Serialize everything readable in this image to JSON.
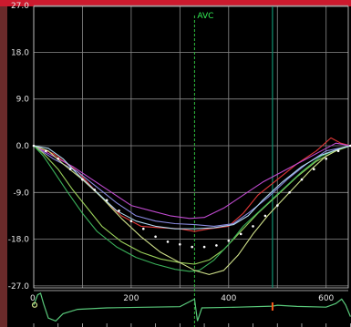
{
  "colors": {
    "background": "#000000",
    "grid": "#8a8a8a",
    "axis_text": "#e6e6e6",
    "top_bar": "#cc1a2e",
    "left_band": "#6a2a2a",
    "avc_line": "#2fbf3f",
    "marker_line": "#0f8f6f",
    "ecg": "#59c87a",
    "ecg_marker": "#ff5a1a"
  },
  "chart_data": {
    "type": "line",
    "y_axis_ticks": [
      "27.0",
      "18.0",
      "9.0",
      "0.0",
      "-9.0",
      "-18.0",
      "-27.0"
    ],
    "ylim": [
      -27,
      27
    ],
    "x_axis_ticks": [
      "0",
      "200",
      "400",
      "600"
    ],
    "xlim": [
      0,
      650
    ],
    "grid": true,
    "annotations": [
      {
        "label": "AVC",
        "x": 330,
        "color": "#2fbf3f"
      }
    ],
    "vertical_markers": [
      {
        "x": 490,
        "color": "#0f8f6f"
      }
    ],
    "series": [
      {
        "color": "#e23838",
        "points": [
          [
            0,
            0
          ],
          [
            40,
            -1.5
          ],
          [
            90,
            -5
          ],
          [
            140,
            -10
          ],
          [
            180,
            -13.5
          ],
          [
            220,
            -15.5
          ],
          [
            260,
            -15.8
          ],
          [
            300,
            -16
          ],
          [
            330,
            -16.5
          ],
          [
            360,
            -16
          ],
          [
            400,
            -15.5
          ],
          [
            430,
            -13
          ],
          [
            460,
            -9.5
          ],
          [
            500,
            -6.5
          ],
          [
            540,
            -3.5
          ],
          [
            580,
            -1
          ],
          [
            610,
            1.5
          ],
          [
            630,
            0.5
          ],
          [
            650,
            0
          ]
        ]
      },
      {
        "color": "#c04ad0",
        "points": [
          [
            0,
            0
          ],
          [
            40,
            -2
          ],
          [
            80,
            -4
          ],
          [
            120,
            -6.5
          ],
          [
            160,
            -9
          ],
          [
            200,
            -11.5
          ],
          [
            240,
            -12.5
          ],
          [
            280,
            -13.5
          ],
          [
            320,
            -14
          ],
          [
            350,
            -13.8
          ],
          [
            390,
            -12
          ],
          [
            430,
            -9.5
          ],
          [
            470,
            -7
          ],
          [
            510,
            -5
          ],
          [
            550,
            -3
          ],
          [
            590,
            -1
          ],
          [
            620,
            0.5
          ],
          [
            650,
            0
          ]
        ]
      },
      {
        "color": "#8a8ae0",
        "points": [
          [
            0,
            0
          ],
          [
            40,
            -2.5
          ],
          [
            90,
            -5
          ],
          [
            130,
            -8
          ],
          [
            170,
            -11
          ],
          [
            210,
            -13.5
          ],
          [
            250,
            -14.5
          ],
          [
            290,
            -15
          ],
          [
            330,
            -15.2
          ],
          [
            370,
            -15.5
          ],
          [
            410,
            -15
          ],
          [
            440,
            -13
          ],
          [
            480,
            -10
          ],
          [
            520,
            -6.5
          ],
          [
            560,
            -3.5
          ],
          [
            600,
            -1
          ],
          [
            650,
            0
          ]
        ]
      },
      {
        "color": "#9ad05a",
        "points": [
          [
            0,
            0
          ],
          [
            20,
            -1.5
          ],
          [
            50,
            -4.5
          ],
          [
            80,
            -8.5
          ],
          [
            110,
            -12
          ],
          [
            140,
            -15.5
          ],
          [
            180,
            -18.5
          ],
          [
            220,
            -20.5
          ],
          [
            260,
            -21.8
          ],
          [
            300,
            -22.5
          ],
          [
            330,
            -22.8
          ],
          [
            360,
            -22
          ],
          [
            390,
            -20
          ],
          [
            420,
            -17
          ],
          [
            460,
            -13
          ],
          [
            500,
            -9.5
          ],
          [
            540,
            -6
          ],
          [
            580,
            -3
          ],
          [
            620,
            -1
          ],
          [
            650,
            0
          ]
        ]
      },
      {
        "color": "#3ab25a",
        "points": [
          [
            0,
            0
          ],
          [
            20,
            -2
          ],
          [
            45,
            -5.5
          ],
          [
            70,
            -9
          ],
          [
            100,
            -13
          ],
          [
            130,
            -16.5
          ],
          [
            170,
            -19.5
          ],
          [
            210,
            -21.5
          ],
          [
            250,
            -22.8
          ],
          [
            290,
            -23.8
          ],
          [
            320,
            -24.2
          ],
          [
            340,
            -24
          ],
          [
            370,
            -22
          ],
          [
            400,
            -19
          ],
          [
            430,
            -15.5
          ],
          [
            470,
            -12
          ],
          [
            510,
            -8.5
          ],
          [
            550,
            -5
          ],
          [
            590,
            -2
          ],
          [
            630,
            -0.5
          ],
          [
            650,
            0
          ]
        ]
      },
      {
        "color": "#cfe08a",
        "points": [
          [
            0,
            0
          ],
          [
            30,
            -1
          ],
          [
            60,
            -3.5
          ],
          [
            100,
            -6.5
          ],
          [
            140,
            -10
          ],
          [
            180,
            -14
          ],
          [
            220,
            -17.5
          ],
          [
            260,
            -20.5
          ],
          [
            300,
            -22.5
          ],
          [
            330,
            -24
          ],
          [
            360,
            -24.8
          ],
          [
            390,
            -24
          ],
          [
            420,
            -21
          ],
          [
            450,
            -17
          ],
          [
            480,
            -13.5
          ],
          [
            510,
            -10.5
          ],
          [
            540,
            -7.5
          ],
          [
            570,
            -4.5
          ],
          [
            600,
            -2
          ],
          [
            630,
            -0.5
          ],
          [
            650,
            0
          ]
        ]
      },
      {
        "color": "#b0d8f0",
        "points": [
          [
            0,
            0
          ],
          [
            30,
            -0.5
          ],
          [
            60,
            -2.5
          ],
          [
            90,
            -5.5
          ],
          [
            130,
            -9
          ],
          [
            170,
            -12.5
          ],
          [
            210,
            -14.5
          ],
          [
            250,
            -15.5
          ],
          [
            290,
            -16
          ],
          [
            330,
            -16
          ],
          [
            370,
            -15.8
          ],
          [
            410,
            -15.2
          ],
          [
            440,
            -13.5
          ],
          [
            470,
            -10.5
          ],
          [
            510,
            -7
          ],
          [
            550,
            -4
          ],
          [
            590,
            -1.8
          ],
          [
            630,
            -0.5
          ],
          [
            650,
            0
          ]
        ]
      }
    ],
    "dotted_series": {
      "color": "#ffffff",
      "points": [
        [
          0,
          0
        ],
        [
          25,
          -1
        ],
        [
          50,
          -2.5
        ],
        [
          75,
          -4.5
        ],
        [
          100,
          -6.5
        ],
        [
          125,
          -8.5
        ],
        [
          150,
          -10.5
        ],
        [
          175,
          -12.5
        ],
        [
          200,
          -14.5
        ],
        [
          225,
          -16
        ],
        [
          250,
          -17.5
        ],
        [
          275,
          -18.5
        ],
        [
          300,
          -19
        ],
        [
          325,
          -19.5
        ],
        [
          350,
          -19.5
        ],
        [
          375,
          -19.2
        ],
        [
          400,
          -18.3
        ],
        [
          425,
          -17
        ],
        [
          450,
          -15.5
        ],
        [
          475,
          -13.5
        ],
        [
          500,
          -11.5
        ],
        [
          525,
          -9
        ],
        [
          550,
          -6.5
        ],
        [
          575,
          -4.5
        ],
        [
          600,
          -2.5
        ],
        [
          625,
          -1
        ],
        [
          650,
          0
        ]
      ]
    },
    "ecg": {
      "color": "#59c87a",
      "points": [
        [
          0,
          0.2
        ],
        [
          8,
          0.9
        ],
        [
          14,
          1
        ],
        [
          20,
          0.3
        ],
        [
          30,
          -0.7
        ],
        [
          45,
          -0.9
        ],
        [
          60,
          -0.4
        ],
        [
          90,
          -0.1
        ],
        [
          150,
          0
        ],
        [
          240,
          0.05
        ],
        [
          300,
          0.08
        ],
        [
          330,
          0.6
        ],
        [
          336,
          -0.9
        ],
        [
          345,
          0
        ],
        [
          420,
          0.05
        ],
        [
          490,
          0.12
        ],
        [
          500,
          0.18
        ],
        [
          540,
          0.1
        ],
        [
          600,
          0.05
        ],
        [
          620,
          0.3
        ],
        [
          632,
          0.6
        ],
        [
          640,
          0.2
        ],
        [
          650,
          -0.6
        ]
      ]
    }
  }
}
